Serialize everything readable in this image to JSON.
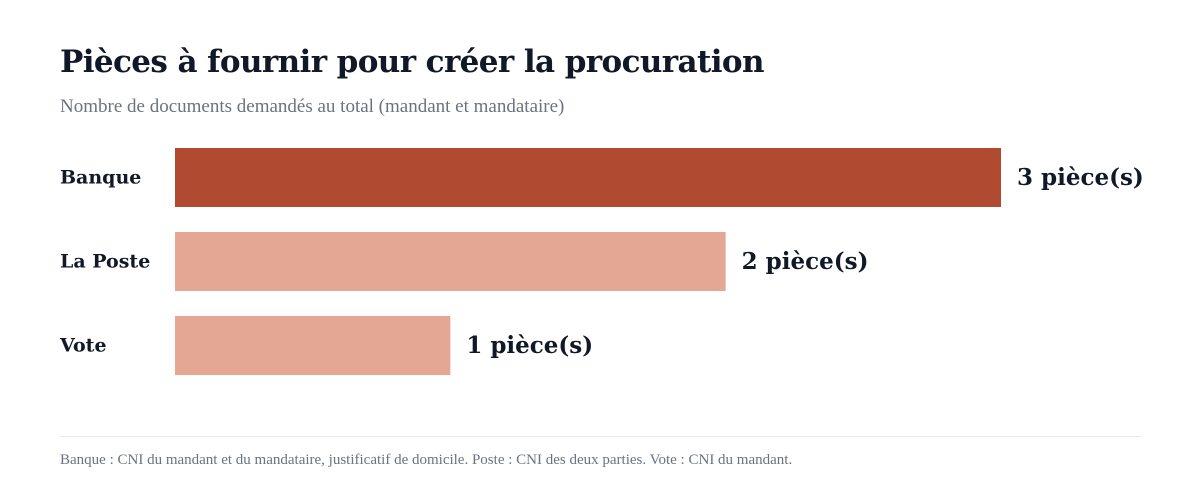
{
  "header": {
    "title": "Pièces à fournir pour créer la procuration",
    "subtitle": "Nombre de documents demandés au total (mandant et mandataire)"
  },
  "footer": {
    "note": "Banque : CNI du mandant et du mandataire, justificatif de domicile. Poste : CNI des deux parties. Vote : CNI du mandant."
  },
  "colors": {
    "highlight": "#b04a30",
    "muted": "#e3a794",
    "text": "#111827"
  },
  "chart_data": {
    "type": "bar",
    "orientation": "horizontal",
    "title": "Pièces à fournir pour créer la procuration",
    "subtitle": "Nombre de documents demandés au total (mandant et mandataire)",
    "categories": [
      "Banque",
      "La Poste",
      "Vote"
    ],
    "values": [
      3,
      2,
      1
    ],
    "value_labels": [
      "3 pièce(s)",
      "2 pièce(s)",
      "1 pièce(s)"
    ],
    "highlight": "Banque",
    "xlim": [
      0,
      3
    ],
    "grid": false,
    "legend": "none"
  }
}
